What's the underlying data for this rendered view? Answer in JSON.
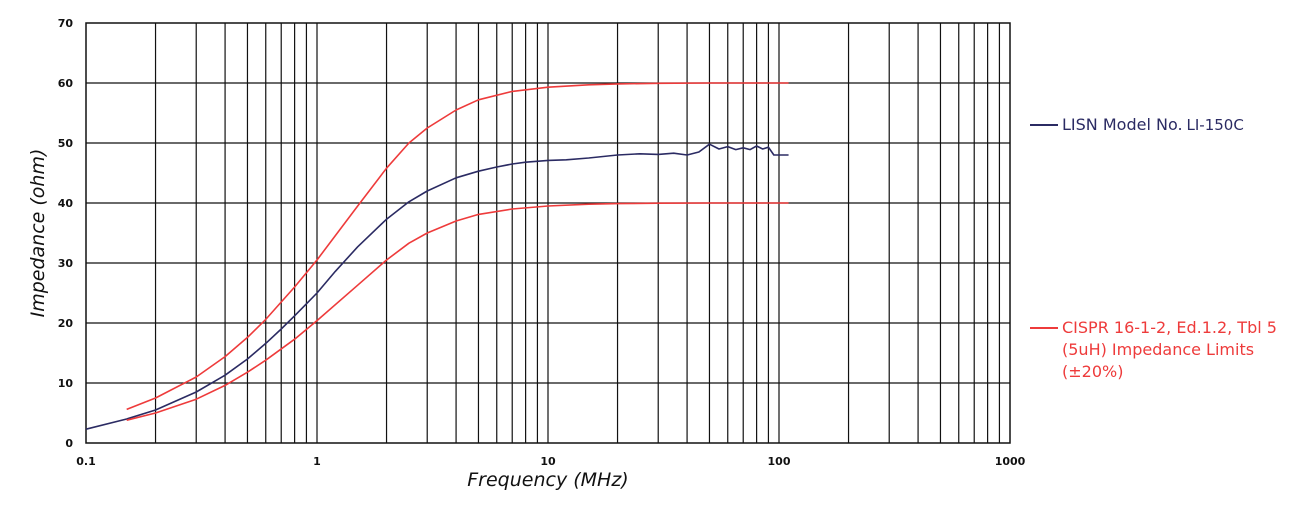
{
  "chart_data": {
    "type": "line",
    "xscale": "log",
    "xlim": [
      0.1,
      1000
    ],
    "ylim": [
      0,
      70
    ],
    "grid": true,
    "xlabel": "Frequency (MHz)",
    "ylabel": "Impedance (ohm)",
    "xticks": [
      "0.1",
      "1",
      "10",
      "100",
      "1000"
    ],
    "yticks": [
      "0",
      "10",
      "20",
      "30",
      "40",
      "50",
      "60",
      "70"
    ],
    "legend_position": "right",
    "series": [
      {
        "name": "LISN Model No. LI-150C",
        "color": "#2b2b63",
        "x": [
          0.1,
          0.15,
          0.2,
          0.3,
          0.4,
          0.5,
          0.6,
          0.7,
          0.8,
          0.9,
          1,
          1.2,
          1.5,
          2,
          2.5,
          3,
          4,
          5,
          6,
          7,
          8,
          10,
          12,
          15,
          20,
          25,
          30,
          35,
          40,
          45,
          50,
          55,
          60,
          65,
          70,
          75,
          80,
          85,
          90,
          95,
          100,
          110
        ],
        "y": [
          2.3,
          4.0,
          5.5,
          8.5,
          11.3,
          14.0,
          16.6,
          19.0,
          21.2,
          23.2,
          25.0,
          28.6,
          32.7,
          37.3,
          40.2,
          42.0,
          44.2,
          45.3,
          46.0,
          46.5,
          46.8,
          47.1,
          47.2,
          47.5,
          48.0,
          48.2,
          48.1,
          48.3,
          48.0,
          48.5,
          49.8,
          49.0,
          49.4,
          48.9,
          49.2,
          48.9,
          49.5,
          49.0,
          49.3,
          48.0,
          48.0,
          48.0
        ]
      },
      {
        "name": "CISPR 16-1-2, Ed.1.2, Tbl 5 (5uH) Impedance Limits (±20%)",
        "color": "#ee3b3b",
        "x": [
          0.15,
          0.2,
          0.3,
          0.4,
          0.5,
          0.6,
          0.8,
          1,
          1.5,
          2,
          2.5,
          3,
          4,
          5,
          7,
          10,
          15,
          20,
          30,
          50,
          100,
          110
        ],
        "y": [
          5.6,
          7.5,
          11.0,
          14.4,
          17.6,
          20.6,
          26.0,
          30.5,
          39.5,
          45.8,
          50.0,
          52.5,
          55.5,
          57.2,
          58.6,
          59.3,
          59.7,
          59.85,
          59.95,
          60,
          60,
          60
        ]
      },
      {
        "name": "",
        "color": "#ee3b3b",
        "x": [
          0.15,
          0.2,
          0.3,
          0.4,
          0.5,
          0.6,
          0.8,
          1,
          1.5,
          2,
          2.5,
          3,
          4,
          5,
          7,
          10,
          15,
          20,
          30,
          50,
          100,
          110
        ],
        "y": [
          3.8,
          5.0,
          7.3,
          9.6,
          11.8,
          13.8,
          17.3,
          20.4,
          26.3,
          30.5,
          33.3,
          35.0,
          37.0,
          38.1,
          39.0,
          39.5,
          39.8,
          39.9,
          39.97,
          40,
          40,
          40
        ]
      }
    ]
  },
  "legend": {
    "lisn_label": "LISN Model No.",
    "lisn_model": "LI-150C",
    "cispr_line1": "CISPR 16-1-2, Ed.1.2, Tbl 5",
    "cispr_line2": "(5uH) Impedance Limits",
    "cispr_line3": "(±20%)"
  }
}
